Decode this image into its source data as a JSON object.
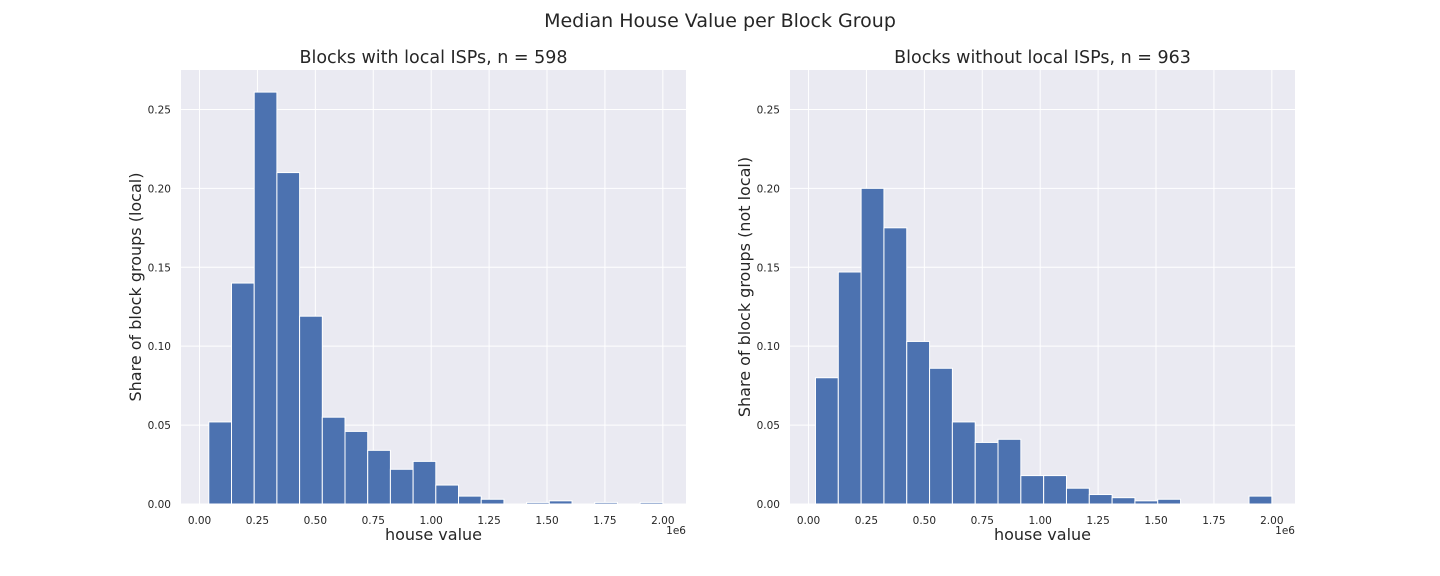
{
  "figure": {
    "suptitle": "Median House Value per Block Group"
  },
  "colors": {
    "bar": "#4c72b0",
    "panel_background": "#eaeaf2",
    "grid": "#ffffff"
  },
  "chart_data": [
    {
      "type": "bar",
      "title": "Blocks with local ISPs, n = 598",
      "xlabel": "house value",
      "ylabel": "Share of block groups (local)",
      "x_offset_label": "1e6",
      "xlim": [
        -0.08,
        2.1
      ],
      "ylim": [
        0,
        0.275
      ],
      "xticks": [
        0.0,
        0.25,
        0.5,
        0.75,
        1.0,
        1.25,
        1.5,
        1.75,
        2.0
      ],
      "xtick_labels": [
        "0.00",
        "0.25",
        "0.50",
        "0.75",
        "1.00",
        "1.25",
        "1.50",
        "1.75",
        "2.00"
      ],
      "yticks": [
        0.0,
        0.05,
        0.1,
        0.15,
        0.2,
        0.25
      ],
      "ytick_labels": [
        "0.00",
        "0.05",
        "0.10",
        "0.15",
        "0.20",
        "0.25"
      ],
      "grid": true,
      "bin_edges": [
        0.04,
        0.138,
        0.236,
        0.334,
        0.432,
        0.53,
        0.628,
        0.726,
        0.824,
        0.922,
        1.02,
        1.118,
        1.216,
        1.314,
        1.412,
        1.51,
        1.608,
        1.706,
        1.804,
        1.902,
        2.0
      ],
      "values": [
        0.052,
        0.14,
        0.261,
        0.21,
        0.119,
        0.055,
        0.046,
        0.034,
        0.022,
        0.027,
        0.012,
        0.005,
        0.003,
        0.0,
        0.001,
        0.002,
        0.0,
        0.001,
        0.0,
        0.001
      ]
    },
    {
      "type": "bar",
      "title": "Blocks without local ISPs, n = 963",
      "xlabel": "house value",
      "ylabel": "Share of block groups (not local)",
      "x_offset_label": "1e6",
      "xlim": [
        -0.08,
        2.1
      ],
      "ylim": [
        0,
        0.275
      ],
      "xticks": [
        0.0,
        0.25,
        0.5,
        0.75,
        1.0,
        1.25,
        1.5,
        1.75,
        2.0
      ],
      "xtick_labels": [
        "0.00",
        "0.25",
        "0.50",
        "0.75",
        "1.00",
        "1.25",
        "1.50",
        "1.75",
        "2.00"
      ],
      "yticks": [
        0.0,
        0.05,
        0.1,
        0.15,
        0.2,
        0.25
      ],
      "ytick_labels": [
        "0.00",
        "0.05",
        "0.10",
        "0.15",
        "0.20",
        "0.25"
      ],
      "grid": true,
      "bin_edges": [
        0.03,
        0.1285,
        0.227,
        0.3255,
        0.424,
        0.5225,
        0.621,
        0.7195,
        0.818,
        0.9165,
        1.015,
        1.1135,
        1.212,
        1.3105,
        1.409,
        1.5075,
        1.606,
        1.7045,
        1.803,
        1.9015,
        2.0
      ],
      "values": [
        0.08,
        0.147,
        0.2,
        0.175,
        0.103,
        0.086,
        0.052,
        0.039,
        0.041,
        0.018,
        0.018,
        0.01,
        0.006,
        0.004,
        0.002,
        0.003,
        0.0,
        0.0,
        0.0,
        0.005
      ]
    }
  ]
}
